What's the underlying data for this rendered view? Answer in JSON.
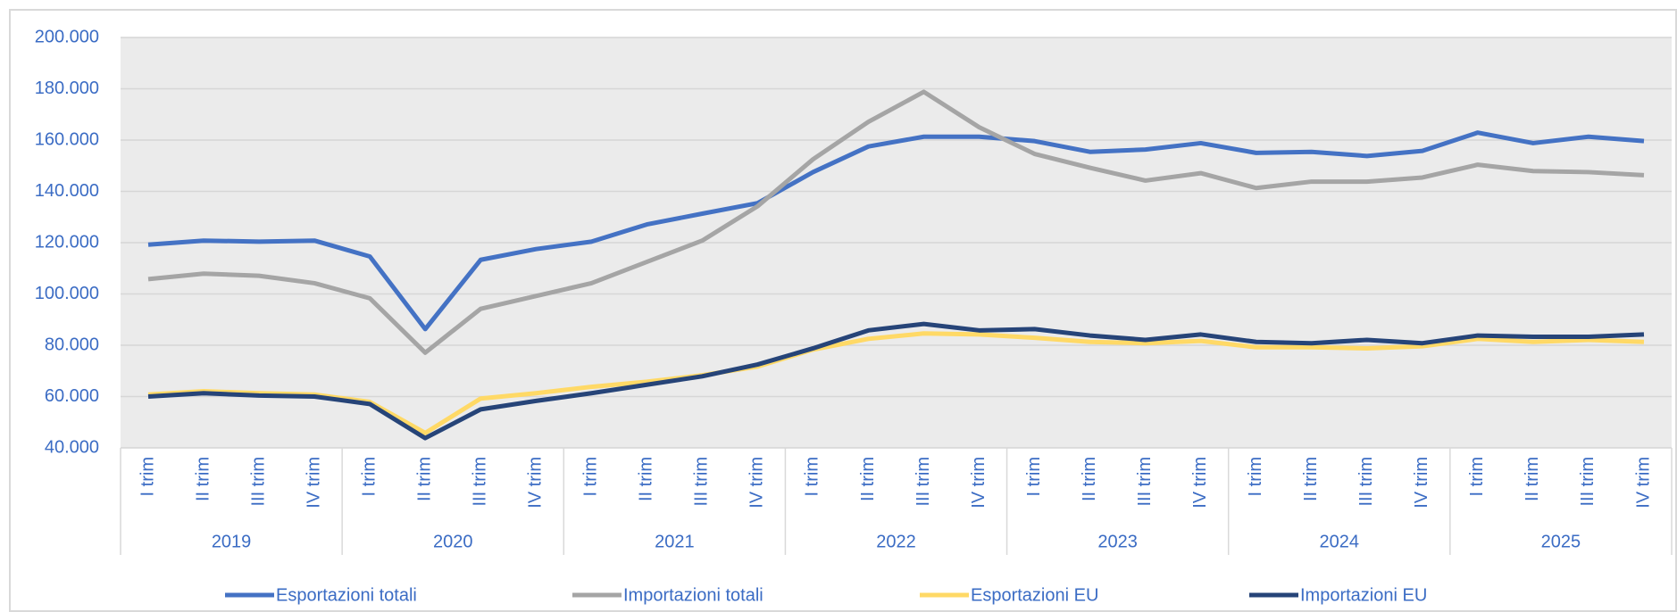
{
  "chart_data": {
    "type": "line",
    "categories": [
      "I trim",
      "II trim",
      "III trim",
      "IV trim",
      "I trim",
      "II trim",
      "III trim",
      "IV trim",
      "I trim",
      "II trim",
      "III trim",
      "IV trim",
      "I trim",
      "II trim",
      "III trim",
      "IV trim",
      "I trim",
      "II trim",
      "III trim",
      "IV trim",
      "I trim",
      "II trim",
      "III trim",
      "IV trim",
      "I trim",
      "II trim",
      "III trim",
      "IV trim"
    ],
    "year_groups": [
      "2019",
      "2020",
      "2021",
      "2022",
      "2023",
      "2024",
      "2025"
    ],
    "series": [
      {
        "name": "Esportazioni totali",
        "color": "#4472c4",
        "values": [
          119200,
          120800,
          120400,
          120800,
          114600,
          86300,
          113300,
          117500,
          120400,
          127100,
          131300,
          135400,
          147500,
          157500,
          161300,
          161300,
          159600,
          155400,
          156300,
          158800,
          155000,
          155400,
          153800,
          155800,
          162900,
          158800,
          161300,
          159600
        ]
      },
      {
        "name": "Importazioni totali",
        "color": "#a5a5a5",
        "values": [
          105800,
          107900,
          107100,
          104200,
          98300,
          77100,
          94200,
          99200,
          104200,
          112500,
          120800,
          134200,
          152500,
          167100,
          178800,
          165000,
          154600,
          149200,
          144200,
          147100,
          141300,
          143800,
          143800,
          145400,
          150400,
          147900,
          147500,
          146300
        ]
      },
      {
        "name": "Esportazioni EU",
        "color": "#ffd966",
        "values": [
          60800,
          62100,
          61300,
          60800,
          57900,
          45800,
          59200,
          61300,
          63800,
          65800,
          68300,
          71700,
          78300,
          82500,
          84600,
          84200,
          82900,
          81300,
          80800,
          81700,
          79200,
          79200,
          78800,
          79600,
          82500,
          81300,
          82100,
          81300
        ]
      },
      {
        "name": "Importazioni EU",
        "color": "#264478",
        "values": [
          60000,
          61300,
          60400,
          60000,
          57100,
          43800,
          55000,
          58300,
          61300,
          64600,
          67900,
          72500,
          78800,
          85800,
          88300,
          85800,
          86300,
          83800,
          82100,
          84200,
          81300,
          80800,
          82100,
          80800,
          83800,
          83300,
          83300,
          84200
        ]
      }
    ],
    "ylim": [
      40000,
      200000
    ],
    "yticks": [
      {
        "value": 40000,
        "label": "40.000"
      },
      {
        "value": 60000,
        "label": "60.000"
      },
      {
        "value": 80000,
        "label": "80.000"
      },
      {
        "value": 100000,
        "label": "100.000"
      },
      {
        "value": 120000,
        "label": "120.000"
      },
      {
        "value": 140000,
        "label": "140.000"
      },
      {
        "value": 160000,
        "label": "160.000"
      },
      {
        "value": 180000,
        "label": "180.000"
      },
      {
        "value": 200000,
        "label": "200.000"
      }
    ],
    "grid": true
  }
}
